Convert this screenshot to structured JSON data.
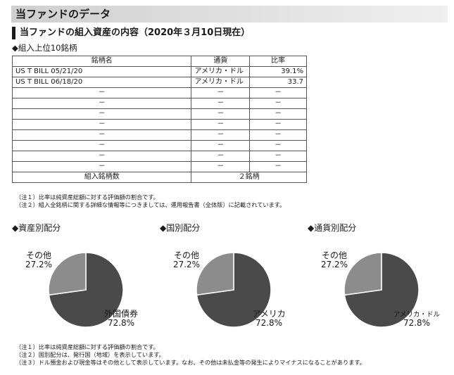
{
  "header": {
    "title": "当ファンドのデータ"
  },
  "section": {
    "title": "当ファンドの組入資産の内容（2020年３月10日現在）"
  },
  "holdings": {
    "subtitle": "◆組入上位10銘柄",
    "columns": [
      "銘柄名",
      "通貨",
      "比率"
    ],
    "rows": [
      {
        "name": "US T BILL 05/21/20",
        "currency": "アメリカ・ドル",
        "ratio": "39.1%"
      },
      {
        "name": "US T BILL 06/18/20",
        "currency": "アメリカ・ドル",
        "ratio": "33.7"
      },
      {
        "name": "－",
        "currency": "－",
        "ratio": "－"
      },
      {
        "name": "－",
        "currency": "－",
        "ratio": "－"
      },
      {
        "name": "－",
        "currency": "－",
        "ratio": "－"
      },
      {
        "name": "－",
        "currency": "－",
        "ratio": "－"
      },
      {
        "name": "－",
        "currency": "－",
        "ratio": "－"
      },
      {
        "name": "－",
        "currency": "－",
        "ratio": "－"
      },
      {
        "name": "－",
        "currency": "－",
        "ratio": "－"
      },
      {
        "name": "－",
        "currency": "－",
        "ratio": "－"
      }
    ],
    "total_label": "組入銘柄数",
    "total_value": "２銘柄"
  },
  "notes1": [
    "（注１）比率は純資産総額に対する評価額の割合です。",
    "（注２）組入全銘柄に関する詳細な情報等につきましては、運用報告書（全体版）に記載されています。"
  ],
  "chart_data": [
    {
      "type": "pie",
      "title": "◆資産別配分",
      "labels": [
        "外国債券",
        "その他"
      ],
      "values": [
        72.8,
        27.2
      ],
      "value_labels": [
        "72.8%",
        "27.2%"
      ],
      "colors": [
        "#4a4a4a",
        "#8c8c8c"
      ]
    },
    {
      "type": "pie",
      "title": "◆国別配分",
      "labels": [
        "アメリカ",
        "その他"
      ],
      "values": [
        72.8,
        27.2
      ],
      "value_labels": [
        "72.8%",
        "27.2%"
      ],
      "colors": [
        "#4a4a4a",
        "#8c8c8c"
      ]
    },
    {
      "type": "pie",
      "title": "◆通貨別配分",
      "labels": [
        "アメリカ・ドル",
        "その他"
      ],
      "values": [
        72.8,
        27.2
      ],
      "value_labels": [
        "72.8%",
        "27.2%"
      ],
      "colors": [
        "#4a4a4a",
        "#8c8c8c"
      ]
    }
  ],
  "notes2": [
    "（注１）比率は純資産総額に対する評価額の割合です。",
    "（注２）国別配分は、発行国（地域）を表示しています。",
    "（注３）ドル預金および現金等はその他として表示しています。なお、その他は未払金等の発生によりマイナスになることがあります。"
  ]
}
